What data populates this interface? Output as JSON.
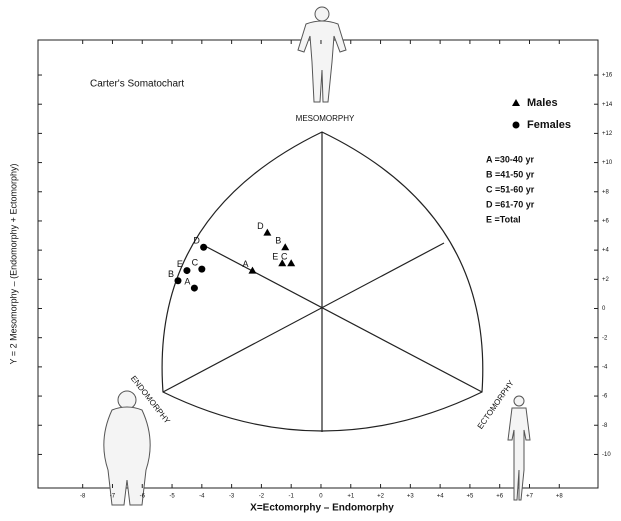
{
  "chart_data": {
    "type": "scatter",
    "title": "Carter's Somatochart",
    "x_label": "X=Ectomorphy – Endomorphy",
    "y_label": "Y = 2 Mesomorphy – (Endomorphy + Ectomorphy)",
    "regions": [
      "MESOMORPHY",
      "ENDOMORPHY",
      "ECTOMORPHY"
    ],
    "key": [
      "A =30-40 yr",
      "B =41-50 yr",
      "C =51-60 yr",
      "D =61-70 yr",
      "E =Total"
    ],
    "xlim": [
      -9.5,
      9.3
    ],
    "ylim": [
      -12.3,
      18.4
    ],
    "xticks": [
      -8,
      -7,
      -6,
      -5,
      -4,
      -3,
      -2,
      -1,
      0,
      {
        "value": 1,
        "label": "+1"
      },
      {
        "value": 2,
        "label": "+2"
      },
      {
        "value": 3,
        "label": "+3"
      },
      {
        "value": 4,
        "label": "+4"
      },
      {
        "value": 5,
        "label": "+5"
      },
      {
        "value": 6,
        "label": "+6"
      },
      {
        "value": 7,
        "label": "+7"
      },
      {
        "value": 8,
        "label": "+8"
      }
    ],
    "yticks": [
      {
        "value": 16,
        "label": "+16"
      },
      {
        "value": 14,
        "label": "+14"
      },
      {
        "value": 12,
        "label": "+12"
      },
      {
        "value": 10,
        "label": "+10"
      },
      {
        "value": 8,
        "label": "+8"
      },
      {
        "value": 6,
        "label": "+6"
      },
      {
        "value": 4,
        "label": "+4"
      },
      {
        "value": 2,
        "label": "+2"
      },
      0,
      -2,
      -4,
      -6,
      -8,
      -10
    ],
    "series": [
      {
        "name": "Males",
        "marker": "triangle",
        "color": "#000000",
        "labels": [
          "A",
          "B",
          "C",
          "D",
          "E"
        ],
        "x": [
          -2.3,
          -1.2,
          -1.0,
          -1.8,
          -1.3
        ],
        "values": [
          2.6,
          4.2,
          3.1,
          5.2,
          3.1
        ]
      },
      {
        "name": "Females",
        "marker": "circle",
        "color": "#000000",
        "labels": [
          "A",
          "B",
          "C",
          "D",
          "E"
        ],
        "x": [
          -4.25,
          -4.8,
          -4.0,
          -3.94,
          -4.5
        ],
        "values": [
          1.4,
          1.9,
          2.7,
          4.2,
          2.6
        ]
      }
    ]
  }
}
